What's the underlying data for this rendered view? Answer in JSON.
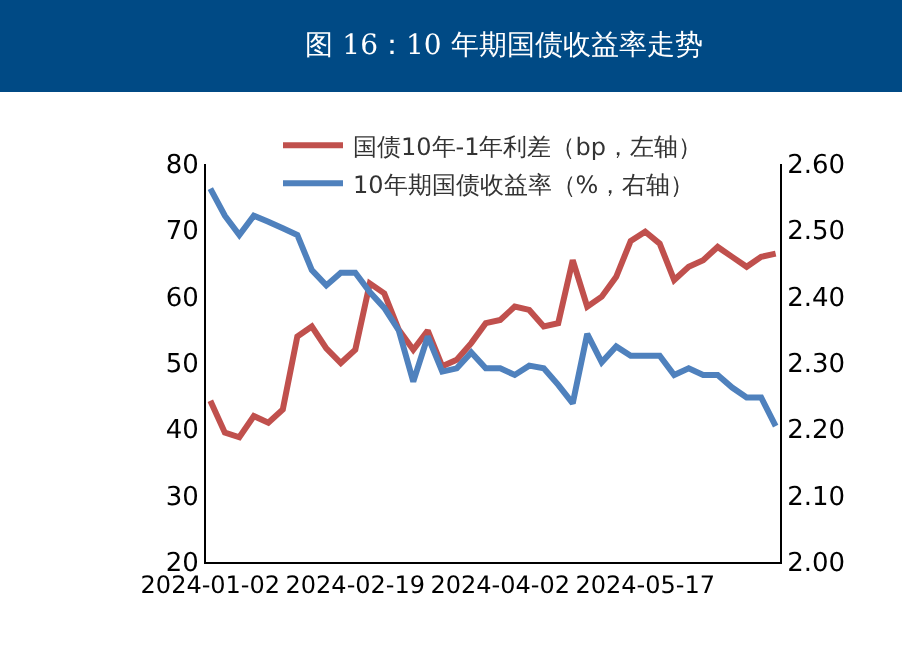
{
  "chart_data": {
    "type": "line",
    "title": "图 16：10 年期国债收益率走势",
    "categories": [
      "2024-01-02",
      null,
      null,
      null,
      null,
      null,
      null,
      null,
      null,
      null,
      "2024-02-19",
      null,
      null,
      null,
      null,
      null,
      null,
      null,
      null,
      null,
      "2024-04-02",
      null,
      null,
      null,
      null,
      null,
      null,
      null,
      null,
      null,
      "2024-05-17",
      null,
      null,
      null,
      null,
      null,
      null,
      null,
      null,
      null
    ],
    "series": [
      {
        "name": "国债10年-1年利差（bp，左轴）",
        "color": "#c0504d",
        "values": [
          44.3,
          39.5,
          38.8,
          42,
          41,
          43,
          54,
          55.5,
          52.2,
          50,
          52,
          62,
          60.5,
          55,
          52,
          54.9,
          49.5,
          50.5,
          53,
          56,
          56.5,
          58.5,
          58,
          55.5,
          56,
          65.5,
          58.5,
          60,
          63,
          68.4,
          69.8,
          68,
          62.5,
          64.5,
          65.5,
          67.5,
          66,
          64.5,
          66,
          66.5
        ]
      },
      {
        "name": "10年期国债收益率（%，右轴）",
        "color": "#4f81bd",
        "axis": "y2",
        "values": [
          2.563,
          2.522,
          2.493,
          2.522,
          2.513,
          2.503,
          2.493,
          2.44,
          2.417,
          2.436,
          2.436,
          2.407,
          2.383,
          2.349,
          2.272,
          2.34,
          2.287,
          2.292,
          2.316,
          2.292,
          2.292,
          2.282,
          2.296,
          2.292,
          2.267,
          2.239,
          2.344,
          2.301,
          2.325,
          2.311,
          2.311,
          2.311,
          2.282,
          2.292,
          2.282,
          2.282,
          2.263,
          2.248,
          2.248,
          2.205
        ]
      }
    ],
    "ylim": [
      20,
      80
    ],
    "yticks": [
      20,
      30,
      40,
      50,
      60,
      70,
      80
    ],
    "y2lim": [
      2.0,
      2.6
    ],
    "y2ticks": [
      {
        "value": 2.0,
        "label": "2.00"
      },
      {
        "value": 2.1,
        "label": "2.10"
      },
      {
        "value": 2.2,
        "label": "2.20"
      },
      {
        "value": 2.3,
        "label": "2.30"
      },
      {
        "value": 2.4,
        "label": "2.40"
      },
      {
        "value": 2.5,
        "label": "2.50"
      },
      {
        "value": 2.6,
        "label": "2.60"
      }
    ],
    "grid": false,
    "legend": "top",
    "marker": "none",
    "line_style": "solid"
  }
}
